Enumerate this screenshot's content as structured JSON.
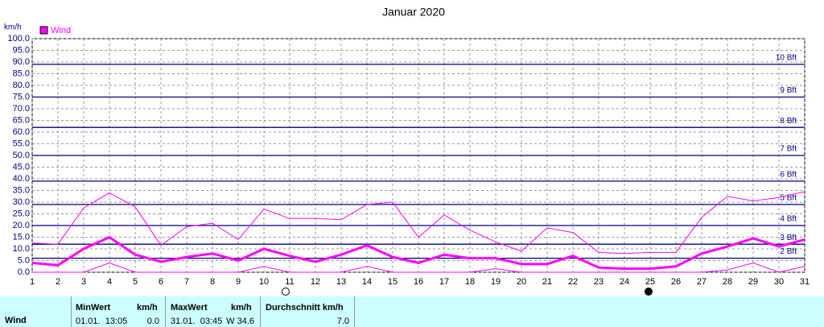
{
  "chart_data": {
    "type": "line",
    "title": "Januar 2020",
    "y_unit": "km/h",
    "x": [
      1,
      2,
      3,
      4,
      5,
      6,
      7,
      8,
      9,
      10,
      11,
      12,
      13,
      14,
      15,
      16,
      17,
      18,
      19,
      20,
      21,
      22,
      23,
      24,
      25,
      26,
      27,
      28,
      29,
      30,
      31
    ],
    "xlim": [
      1,
      31
    ],
    "xticks": [
      1,
      2,
      3,
      4,
      5,
      6,
      7,
      8,
      9,
      10,
      11,
      12,
      13,
      14,
      15,
      16,
      17,
      18,
      19,
      20,
      21,
      22,
      23,
      24,
      25,
      26,
      27,
      28,
      29,
      30,
      31
    ],
    "ylim": [
      0,
      100
    ],
    "yticks": [
      {
        "value": 0,
        "label": "0.0"
      },
      {
        "value": 5,
        "label": "5.0"
      },
      {
        "value": 10,
        "label": "10.0"
      },
      {
        "value": 15,
        "label": "15.0"
      },
      {
        "value": 20,
        "label": "20.0"
      },
      {
        "value": 25,
        "label": "25.0"
      },
      {
        "value": 30,
        "label": "30.0"
      },
      {
        "value": 35,
        "label": "35.0"
      },
      {
        "value": 40,
        "label": "40.0"
      },
      {
        "value": 45,
        "label": "45.0"
      },
      {
        "value": 50,
        "label": "50.0"
      },
      {
        "value": 55,
        "label": "55.0"
      },
      {
        "value": 60,
        "label": "60.0"
      },
      {
        "value": 65,
        "label": "65.0"
      },
      {
        "value": 70,
        "label": "70.0"
      },
      {
        "value": 75,
        "label": "75.0"
      },
      {
        "value": 80,
        "label": "80.0"
      },
      {
        "value": 85,
        "label": "85.0"
      },
      {
        "value": 90,
        "label": "90.0"
      },
      {
        "value": 95,
        "label": "95.0"
      },
      {
        "value": 100,
        "label": "100.0"
      }
    ],
    "grid": true,
    "bft_lines": [
      {
        "value": 6,
        "label": "2 Bft"
      },
      {
        "value": 12,
        "label": "3 Bft"
      },
      {
        "value": 20,
        "label": "4 Bft"
      },
      {
        "value": 29,
        "label": "5 Bft"
      },
      {
        "value": 39,
        "label": "6 Bft"
      },
      {
        "value": 50,
        "label": "7 Bft"
      },
      {
        "value": 62,
        "label": "8 Bft"
      },
      {
        "value": 75,
        "label": "9 Bft"
      },
      {
        "value": 89,
        "label": "10 Bft"
      }
    ],
    "bft_color": "#000080",
    "series": [
      {
        "name": "Wind",
        "color": "#ff00ff",
        "values": [
          4,
          3,
          10,
          15,
          7.5,
          4.5,
          6.5,
          8,
          5,
          10,
          7,
          4.5,
          7.5,
          11.5,
          6.5,
          4,
          7.5,
          6,
          6,
          3.5,
          3.5,
          7,
          2,
          1.5,
          1.5,
          2.5,
          8,
          11,
          14.5,
          11,
          14
        ]
      },
      {
        "color": "#ff00ff",
        "values": [
          12.5,
          12,
          27.5,
          34,
          28,
          11.5,
          19.5,
          21,
          14,
          27,
          23,
          23,
          22.5,
          29,
          30,
          15,
          24.5,
          18,
          13,
          9,
          19,
          17,
          8.5,
          8,
          8.5,
          8.5,
          23.5,
          32.5,
          30.5,
          32,
          34.5
        ]
      },
      {
        "color": "#ff00ff",
        "values": [
          0,
          0,
          0,
          4,
          0,
          0,
          0,
          0,
          0,
          2.5,
          0,
          0,
          0,
          2.5,
          0,
          0,
          0,
          0,
          1.5,
          0,
          0,
          0,
          0,
          0,
          0,
          0,
          0,
          1,
          4,
          0,
          2.5
        ]
      }
    ]
  },
  "summary": {
    "row_label": "Wind",
    "columns": [
      {
        "header": "MinWert",
        "unit": "km/h",
        "time": "01.01.  13:05",
        "value": "0.0"
      },
      {
        "header": "MaxWert",
        "unit": "km/h",
        "time": "31.01.  03:45",
        "value": "W 34.6"
      },
      {
        "header": "Durchschnitt km/h",
        "value": "7.0"
      }
    ]
  }
}
